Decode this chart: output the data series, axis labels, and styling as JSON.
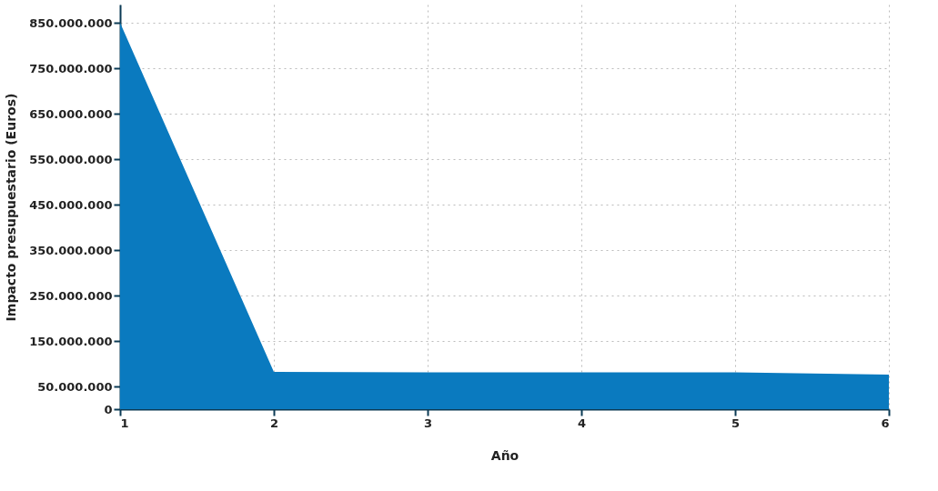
{
  "chart_data": {
    "type": "area",
    "xlabel": "Año",
    "ylabel": "Impacto presupuestario (Euros)",
    "x": [
      1,
      2,
      3,
      4,
      5,
      6
    ],
    "values": [
      850000000,
      82000000,
      81000000,
      81000000,
      81000000,
      76000000
    ],
    "color": "#0a7abf",
    "xlim": [
      1,
      6
    ],
    "xticks": [
      1,
      2,
      3,
      4,
      5,
      6
    ],
    "ylim": [
      0,
      890000000
    ],
    "yticks": [
      0,
      {
        "value": 50000000,
        "label": "50.000.000"
      },
      {
        "value": 150000000,
        "label": "150.000.000"
      },
      {
        "value": 250000000,
        "label": "250.000.000"
      },
      {
        "value": 350000000,
        "label": "350.000.000"
      },
      {
        "value": 450000000,
        "label": "450.000.000"
      },
      {
        "value": 550000000,
        "label": "550.000.000"
      },
      {
        "value": 650000000,
        "label": "650.000.000"
      },
      {
        "value": 750000000,
        "label": "750.000.000"
      },
      {
        "value": 850000000,
        "label": "850.000.000"
      }
    ],
    "grid": true
  }
}
